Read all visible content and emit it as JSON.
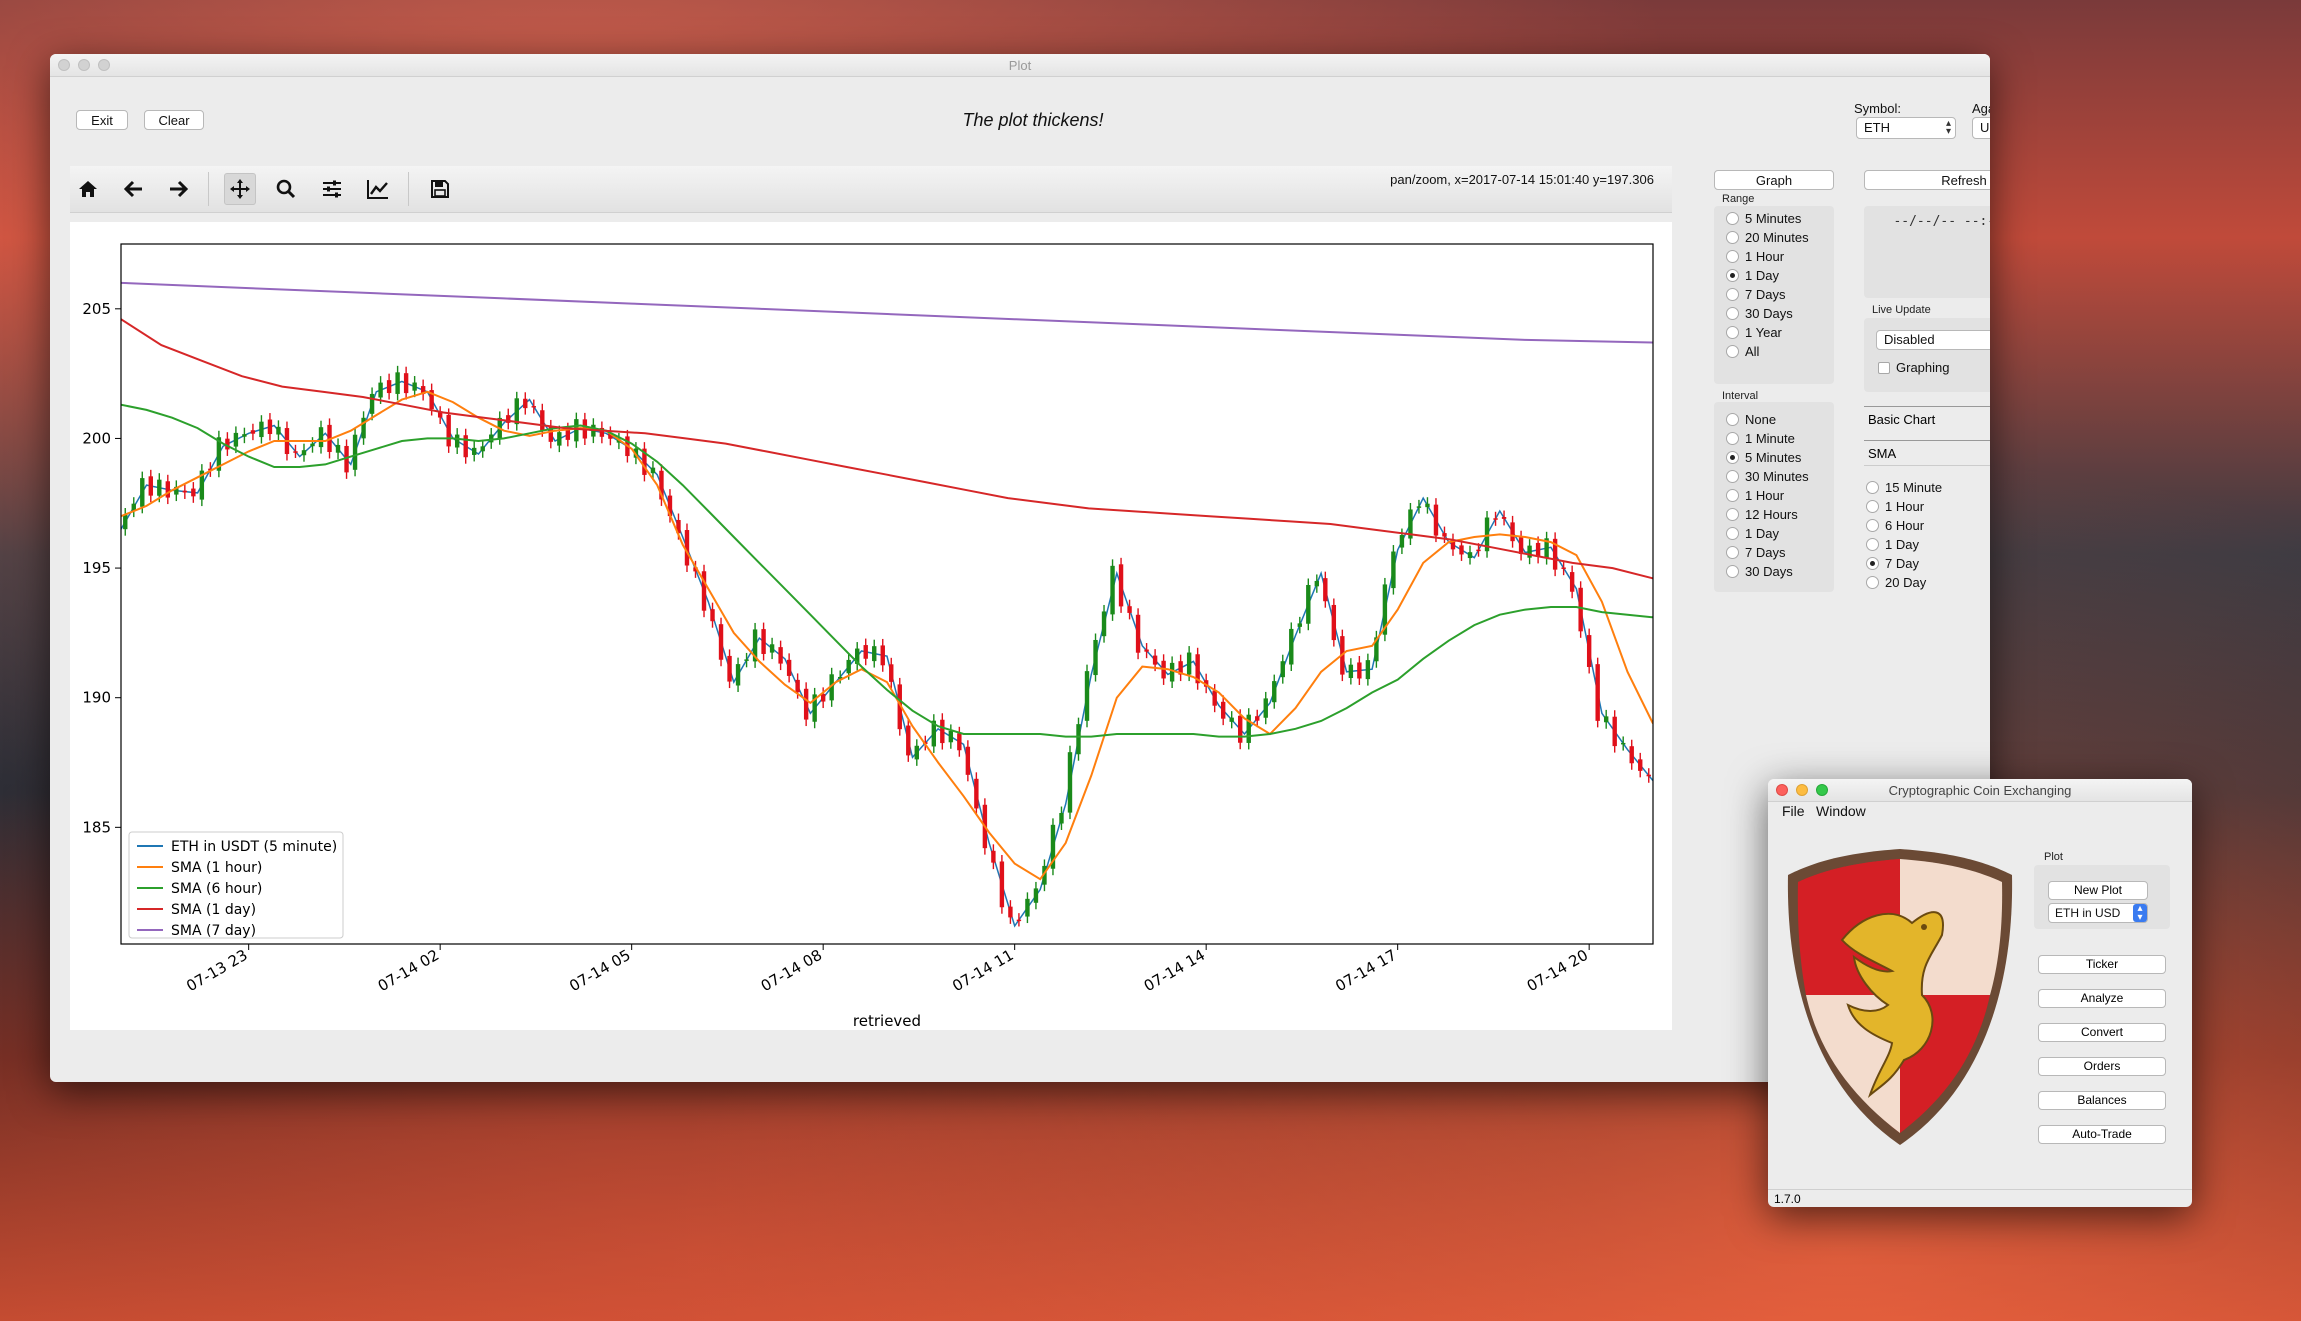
{
  "desktop": {
    "name": "macOS desktop"
  },
  "plot_window": {
    "title": "Plot",
    "buttons": {
      "exit": "Exit",
      "clear": "Clear"
    },
    "heading": "The plot thickens!",
    "symbol": {
      "label": "Symbol:",
      "value": "ETH"
    },
    "against": {
      "label": "Against:",
      "value": "USDT"
    },
    "toolbar": {
      "icons": [
        "home-icon",
        "back-arrow-icon",
        "forward-arrow-icon",
        "pan-icon",
        "zoom-icon",
        "configure-subplots-icon",
        "edit-axis-icon",
        "save-icon"
      ],
      "status": "pan/zoom, x=2017-07-14 15:01:40 y=197.306"
    },
    "controls": {
      "graph_button": "Graph",
      "refresh_button": "Refresh",
      "range_label": "Range",
      "range_options": [
        "5 Minutes",
        "20 Minutes",
        "1 Hour",
        "1 Day",
        "7 Days",
        "30 Days",
        "1 Year",
        "All"
      ],
      "range_selected": "1 Day",
      "interval_label": "Interval",
      "interval_options": [
        "None",
        "1 Minute",
        "5 Minutes",
        "30 Minutes",
        "1 Hour",
        "12 Hours",
        "1 Day",
        "7 Days",
        "30 Days"
      ],
      "interval_selected": "5 Minutes",
      "info_lines": [
        "---",
        "--/--/-- --:--:-- --",
        "---.---",
        "---",
        "---"
      ],
      "live_update_label": "Live Update",
      "live_update_value": "Disabled",
      "graphing_label": "Graphing",
      "tabs": [
        "Basic Chart",
        "SMA"
      ],
      "sma_options": [
        "15 Minute",
        "1 Hour",
        "6 Hour",
        "1 Day",
        "7 Day",
        "20 Day"
      ],
      "sma_selected": "7 Day"
    }
  },
  "chart_data": {
    "type": "line",
    "title": "",
    "xlabel": "retrieved",
    "ylabel": "",
    "x_ticks": [
      "07-13 23",
      "07-14 02",
      "07-14 05",
      "07-14 08",
      "07-14 11",
      "07-14 14",
      "07-14 17",
      "07-14 20"
    ],
    "x_range": [
      "2017-07-13 21:00",
      "2017-07-14 21:00"
    ],
    "y_ticks": [
      "185",
      "190",
      "195",
      "200",
      "205"
    ],
    "ylim": [
      180.5,
      207.5
    ],
    "grid": false,
    "legend_position": "lower-left",
    "series": [
      {
        "name": "ETH in USDT (5 minute)",
        "color": "#1f77b4",
        "kind": "candlestick",
        "values": [
          196.5,
          198.2,
          198.0,
          197.9,
          199.7,
          200.2,
          200.5,
          199.3,
          200.2,
          199.0,
          201.8,
          202.2,
          201.8,
          200.0,
          199.4,
          200.6,
          201.5,
          199.9,
          200.4,
          200.2,
          199.6,
          198.6,
          196.2,
          193.7,
          190.6,
          192.3,
          191.5,
          189.4,
          190.6,
          191.8,
          191.6,
          187.7,
          188.8,
          188.2,
          184.4,
          181.2,
          182.6,
          185.9,
          190.9,
          194.8,
          192.0,
          190.9,
          191.4,
          189.7,
          188.6,
          189.8,
          192.4,
          194.8,
          191.0,
          191.1,
          195.7,
          197.7,
          196.0,
          195.4,
          197.2,
          195.6,
          195.8,
          194.2,
          189.4,
          188.0,
          186.8
        ]
      },
      {
        "name": "SMA (1 hour)",
        "color": "#ff7f0e",
        "values": [
          197.0,
          197.4,
          198.0,
          198.5,
          199.0,
          199.5,
          199.9,
          199.9,
          199.9,
          200.3,
          200.9,
          201.5,
          201.8,
          201.4,
          200.8,
          200.3,
          200.1,
          200.3,
          200.4,
          200.3,
          199.6,
          198.2,
          195.9,
          194.2,
          192.5,
          191.4,
          190.5,
          189.8,
          190.6,
          191.1,
          190.6,
          188.9,
          187.5,
          186.2,
          184.8,
          183.6,
          183.0,
          184.4,
          187.0,
          190.0,
          191.2,
          191.1,
          190.8,
          190.2,
          189.2,
          188.6,
          189.6,
          191.0,
          191.8,
          192.0,
          193.4,
          195.2,
          196.0,
          196.2,
          196.3,
          196.2,
          196.0,
          195.5,
          193.7,
          191.0,
          189.0
        ]
      },
      {
        "name": "SMA (6 hour)",
        "color": "#2ca02c",
        "values": [
          201.3,
          201.1,
          200.8,
          200.4,
          199.8,
          199.3,
          198.9,
          198.9,
          199.0,
          199.3,
          199.6,
          199.9,
          200.0,
          200.0,
          199.9,
          200.0,
          200.2,
          200.4,
          200.5,
          200.3,
          199.8,
          199.1,
          198.2,
          197.2,
          196.2,
          195.2,
          194.2,
          193.2,
          192.2,
          191.2,
          190.3,
          189.5,
          188.9,
          188.6,
          188.6,
          188.6,
          188.6,
          188.5,
          188.5,
          188.6,
          188.6,
          188.6,
          188.6,
          188.5,
          188.5,
          188.6,
          188.8,
          189.1,
          189.6,
          190.2,
          190.7,
          191.5,
          192.2,
          192.8,
          193.2,
          193.4,
          193.5,
          193.5,
          193.3,
          193.2,
          193.1
        ]
      },
      {
        "name": "SMA (1 day)",
        "color": "#d62728",
        "values": [
          204.6,
          203.6,
          203.0,
          202.4,
          202.0,
          201.8,
          201.6,
          201.3,
          201.0,
          200.8,
          200.6,
          200.4,
          200.3,
          200.2,
          200.0,
          199.8,
          199.5,
          199.2,
          198.9,
          198.6,
          198.3,
          198.0,
          197.7,
          197.5,
          197.3,
          197.2,
          197.1,
          197.0,
          196.9,
          196.8,
          196.7,
          196.5,
          196.3,
          196.1,
          195.8,
          195.5,
          195.2,
          195.0,
          194.6
        ]
      },
      {
        "name": "SMA (7 day)",
        "color": "#9467bd",
        "values": [
          206.0,
          205.8,
          205.6,
          205.4,
          205.2,
          205.0,
          204.8,
          204.6,
          204.4,
          204.2,
          204.0,
          203.8,
          203.7
        ]
      }
    ]
  },
  "coin_window": {
    "title": "Cryptographic Coin Exchanging",
    "menu": [
      "File",
      "Window"
    ],
    "plot_label": "Plot",
    "new_plot_button": "New Plot",
    "plot_select": "ETH in USD",
    "buttons": [
      "Ticker",
      "Analyze",
      "Convert",
      "Orders",
      "Balances",
      "Auto-Trade"
    ],
    "version": "1.7.0",
    "logo": "griffin-shield-logo"
  }
}
